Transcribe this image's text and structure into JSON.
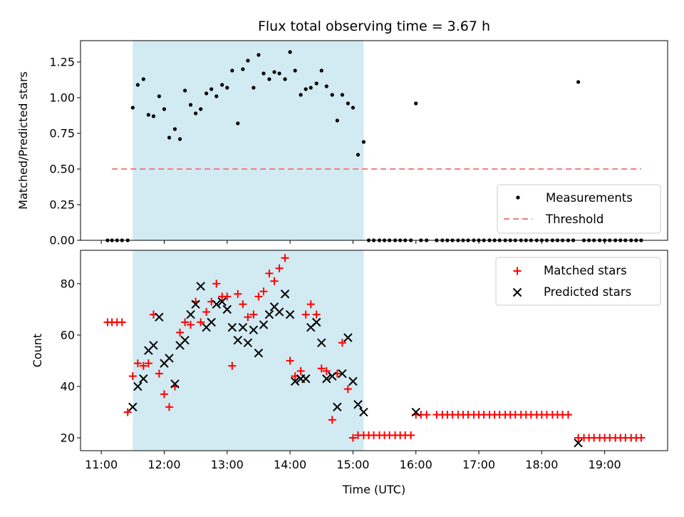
{
  "chart_data": [
    {
      "type": "scatter",
      "title": "Flux total observing time = 3.67 h",
      "xlabel": "",
      "ylabel": "Matched/Predicted stars",
      "xlim": [
        10.67,
        20.0
      ],
      "ylim": [
        0,
        1.4
      ],
      "yticks": [
        "0.00",
        "0.25",
        "0.50",
        "0.75",
        "1.00",
        "1.25"
      ],
      "grid": false,
      "legend": "lower-right",
      "shaded_span": [
        11.5,
        15.17
      ],
      "shaded_color": "#add8e6",
      "series": [
        {
          "name": "Measurements",
          "marker": "dot",
          "color": "#000000",
          "x": [
            11.1,
            11.17,
            11.25,
            11.33,
            11.42,
            11.5,
            11.58,
            11.67,
            11.75,
            11.83,
            11.92,
            12.0,
            12.08,
            12.17,
            12.25,
            12.33,
            12.42,
            12.5,
            12.58,
            12.67,
            12.75,
            12.83,
            12.92,
            13.0,
            13.08,
            13.17,
            13.25,
            13.33,
            13.42,
            13.5,
            13.58,
            13.67,
            13.75,
            13.83,
            13.92,
            14.0,
            14.08,
            14.17,
            14.25,
            14.33,
            14.42,
            14.5,
            14.58,
            14.67,
            14.75,
            14.83,
            14.92,
            15.0,
            15.08,
            15.17,
            15.25,
            15.33,
            15.42,
            15.5,
            15.58,
            15.67,
            15.75,
            15.83,
            15.92,
            16.0,
            16.08,
            16.17,
            16.33,
            16.42,
            16.5,
            16.58,
            16.67,
            16.75,
            16.83,
            16.92,
            17.0,
            17.08,
            17.17,
            17.25,
            17.33,
            17.42,
            17.5,
            17.58,
            17.67,
            17.75,
            17.83,
            17.92,
            18.0,
            18.08,
            18.17,
            18.25,
            18.33,
            18.42,
            18.5,
            18.58,
            18.67,
            18.75,
            18.83,
            18.92,
            19.0,
            19.08,
            19.17,
            19.25,
            19.33,
            19.42,
            19.5,
            19.58
          ],
          "y": [
            0,
            0,
            0,
            0,
            0,
            0.93,
            1.09,
            1.13,
            0.88,
            0.87,
            1.01,
            0.92,
            0.72,
            0.78,
            0.71,
            1.05,
            0.95,
            0.89,
            0.92,
            1.03,
            1.06,
            1.01,
            1.09,
            1.07,
            1.19,
            0.82,
            1.2,
            1.26,
            1.07,
            1.3,
            1.17,
            1.13,
            1.18,
            1.17,
            1.13,
            1.32,
            1.19,
            1.02,
            1.06,
            1.07,
            1.1,
            1.19,
            1.08,
            1.02,
            0.84,
            1.02,
            0.96,
            0.93,
            0.6,
            0.69,
            0,
            0,
            0,
            0,
            0,
            0,
            0,
            0,
            0,
            0.96,
            0,
            0,
            0,
            0,
            0,
            0,
            0,
            0,
            0,
            0,
            0,
            0,
            0,
            0,
            0,
            0,
            0,
            0,
            0,
            0,
            0,
            0,
            0,
            0,
            0,
            0,
            0,
            0,
            0,
            1.11,
            0,
            0,
            0,
            0,
            0,
            0,
            0,
            0,
            0,
            0,
            0,
            0
          ]
        },
        {
          "name": "Threshold",
          "style": "dashed",
          "color": "#f08080",
          "x": [
            11.17,
            19.58
          ],
          "y": [
            0.5,
            0.5
          ]
        }
      ]
    },
    {
      "type": "scatter",
      "title": "",
      "xlabel": "Time (UTC)",
      "ylabel": "Count",
      "xlim": [
        10.67,
        20.0
      ],
      "ylim": [
        15,
        93
      ],
      "yticks": [
        "20",
        "40",
        "60",
        "80"
      ],
      "xticks": [
        {
          "value": 11,
          "label": "11:00"
        },
        {
          "value": 12,
          "label": "12:00"
        },
        {
          "value": 13,
          "label": "13:00"
        },
        {
          "value": 14,
          "label": "14:00"
        },
        {
          "value": 15,
          "label": "15:00"
        },
        {
          "value": 16,
          "label": "16:00"
        },
        {
          "value": 17,
          "label": "17:00"
        },
        {
          "value": 18,
          "label": "18:00"
        },
        {
          "value": 19,
          "label": "19:00"
        }
      ],
      "grid": false,
      "legend": "upper-right",
      "shaded_span": [
        11.5,
        15.17
      ],
      "shaded_color": "#add8e6",
      "series": [
        {
          "name": "Matched stars",
          "marker": "plus",
          "color": "#ff0000",
          "x": [
            11.1,
            11.17,
            11.25,
            11.33,
            11.42,
            11.5,
            11.58,
            11.67,
            11.75,
            11.83,
            11.92,
            12.0,
            12.08,
            12.17,
            12.25,
            12.33,
            12.42,
            12.5,
            12.58,
            12.67,
            12.75,
            12.83,
            12.92,
            13.0,
            13.08,
            13.17,
            13.25,
            13.33,
            13.42,
            13.5,
            13.58,
            13.67,
            13.75,
            13.83,
            13.92,
            14.0,
            14.08,
            14.17,
            14.25,
            14.33,
            14.42,
            14.5,
            14.58,
            14.67,
            14.75,
            14.83,
            14.92,
            15.0,
            15.08,
            15.17,
            15.25,
            15.33,
            15.42,
            15.5,
            15.58,
            15.67,
            15.75,
            15.83,
            15.92,
            16.0,
            16.08,
            16.17,
            16.33,
            16.42,
            16.5,
            16.58,
            16.67,
            16.75,
            16.83,
            16.92,
            17.0,
            17.08,
            17.17,
            17.25,
            17.33,
            17.42,
            17.5,
            17.58,
            17.67,
            17.75,
            17.83,
            17.92,
            18.0,
            18.08,
            18.17,
            18.25,
            18.33,
            18.42,
            18.58,
            18.67,
            18.75,
            18.83,
            18.92,
            19.0,
            19.08,
            19.17,
            19.25,
            19.33,
            19.42,
            19.5,
            19.58
          ],
          "y": [
            65,
            65,
            65,
            65,
            30,
            44,
            49,
            48,
            49,
            68,
            45,
            37,
            32,
            40,
            61,
            65,
            64,
            73,
            65,
            69,
            73,
            80,
            75,
            75,
            48,
            76,
            72,
            67,
            68,
            75,
            77,
            84,
            81,
            86,
            90,
            50,
            44,
            46,
            68,
            72,
            68,
            47,
            46,
            27,
            45,
            57,
            39,
            20,
            21,
            21,
            21,
            21,
            21,
            21,
            21,
            21,
            21,
            21,
            21,
            29,
            29,
            29,
            29,
            29,
            29,
            29,
            29,
            29,
            29,
            29,
            29,
            29,
            29,
            29,
            29,
            29,
            29,
            29,
            29,
            29,
            29,
            29,
            29,
            29,
            29,
            29,
            29,
            29,
            20,
            20,
            20,
            20,
            20,
            20,
            20,
            20,
            20,
            20,
            20,
            20,
            20
          ]
        },
        {
          "name": "Predicted stars",
          "marker": "x",
          "color": "#000000",
          "x": [
            11.5,
            11.58,
            11.67,
            11.75,
            11.83,
            11.92,
            12.0,
            12.08,
            12.17,
            12.25,
            12.33,
            12.42,
            12.5,
            12.58,
            12.67,
            12.75,
            12.83,
            12.92,
            13.0,
            13.08,
            13.17,
            13.25,
            13.33,
            13.42,
            13.5,
            13.58,
            13.67,
            13.75,
            13.83,
            13.92,
            14.0,
            14.08,
            14.17,
            14.25,
            14.33,
            14.42,
            14.5,
            14.58,
            14.67,
            14.75,
            14.83,
            14.92,
            15.0,
            15.08,
            15.17,
            16.0,
            18.58
          ],
          "y": [
            32,
            40,
            43,
            54,
            56,
            67,
            49,
            51,
            41,
            56,
            58,
            68,
            72,
            79,
            63,
            65,
            72,
            73,
            70,
            63,
            58,
            63,
            57,
            62,
            53,
            64,
            68,
            71,
            69,
            76,
            68,
            42,
            43,
            43,
            63,
            65,
            57,
            43,
            44,
            32,
            45,
            59,
            42,
            33,
            30,
            30,
            18
          ]
        }
      ]
    }
  ]
}
